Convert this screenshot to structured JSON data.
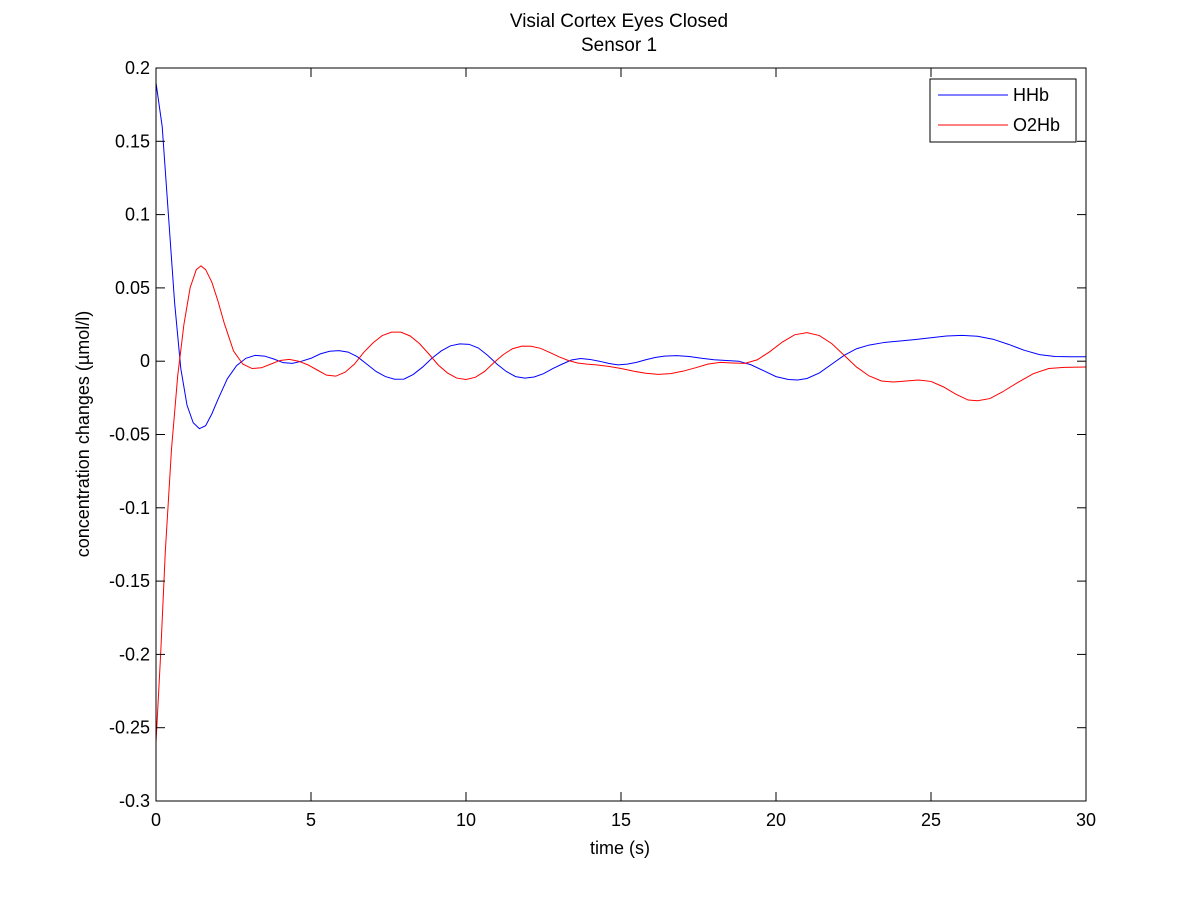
{
  "chart_data": {
    "type": "line",
    "title": "Visial Cortex Eyes Closed",
    "subtitle": "Sensor 1",
    "xlabel": "time (s)",
    "ylabel": "concentration changes (µmol/l)",
    "xlim": [
      0,
      30
    ],
    "ylim": [
      -0.3,
      0.2
    ],
    "x_ticks": [
      0,
      5,
      10,
      15,
      20,
      25,
      30
    ],
    "x_tick_labels": [
      "0",
      "5",
      "10",
      "15",
      "20",
      "25",
      "30"
    ],
    "y_ticks": [
      0.2,
      0.15,
      0.1,
      0.05,
      0,
      -0.05,
      -0.1,
      -0.15,
      -0.2,
      -0.25,
      -0.3
    ],
    "y_tick_labels": [
      "0.2",
      "0.15",
      "0.1",
      "0.05",
      "0",
      "-0.05",
      "-0.1",
      "-0.15",
      "-0.2",
      "-0.25",
      "-0.3"
    ],
    "grid": false,
    "legend_position": "top-right",
    "series": [
      {
        "name": "HHb",
        "color": "#0000ff",
        "points": [
          [
            0,
            0.19
          ],
          [
            0.2,
            0.16
          ],
          [
            0.4,
            0.1
          ],
          [
            0.6,
            0.04
          ],
          [
            0.8,
            -0.005
          ],
          [
            1.0,
            -0.03
          ],
          [
            1.2,
            -0.042
          ],
          [
            1.4,
            -0.046
          ],
          [
            1.6,
            -0.044
          ],
          [
            1.8,
            -0.036
          ],
          [
            2.0,
            -0.026
          ],
          [
            2.3,
            -0.012
          ],
          [
            2.6,
            -0.003
          ],
          [
            2.9,
            0.002
          ],
          [
            3.2,
            0.004
          ],
          [
            3.5,
            0.0035
          ],
          [
            3.8,
            0.0015
          ],
          [
            4.1,
            -0.001
          ],
          [
            4.4,
            -0.0015
          ],
          [
            4.7,
            0.0
          ],
          [
            5.0,
            0.002
          ],
          [
            5.3,
            0.005
          ],
          [
            5.6,
            0.0068
          ],
          [
            5.9,
            0.0072
          ],
          [
            6.2,
            0.0062
          ],
          [
            6.5,
            0.003
          ],
          [
            6.8,
            -0.002
          ],
          [
            7.1,
            -0.007
          ],
          [
            7.4,
            -0.0105
          ],
          [
            7.7,
            -0.0123
          ],
          [
            8.0,
            -0.0122
          ],
          [
            8.3,
            -0.009
          ],
          [
            8.6,
            -0.004
          ],
          [
            8.9,
            0.002
          ],
          [
            9.2,
            0.007
          ],
          [
            9.5,
            0.0105
          ],
          [
            9.8,
            0.0118
          ],
          [
            10.1,
            0.0115
          ],
          [
            10.4,
            0.009
          ],
          [
            10.7,
            0.004
          ],
          [
            11.0,
            -0.002
          ],
          [
            11.3,
            -0.007
          ],
          [
            11.6,
            -0.0105
          ],
          [
            11.9,
            -0.0115
          ],
          [
            12.2,
            -0.0108
          ],
          [
            12.5,
            -0.0085
          ],
          [
            12.8,
            -0.005
          ],
          [
            13.1,
            -0.002
          ],
          [
            13.4,
            0.0008
          ],
          [
            13.7,
            0.0018
          ],
          [
            14.0,
            0.0012
          ],
          [
            14.3,
            0.0
          ],
          [
            14.6,
            -0.0015
          ],
          [
            14.9,
            -0.0025
          ],
          [
            15.2,
            -0.002
          ],
          [
            15.5,
            -0.0008
          ],
          [
            15.8,
            0.001
          ],
          [
            16.1,
            0.0025
          ],
          [
            16.4,
            0.0035
          ],
          [
            16.8,
            0.0038
          ],
          [
            17.2,
            0.0032
          ],
          [
            17.6,
            0.002
          ],
          [
            18.0,
            0.001
          ],
          [
            18.4,
            0.0005
          ],
          [
            18.8,
            0.0
          ],
          [
            19.2,
            -0.0025
          ],
          [
            19.6,
            -0.0065
          ],
          [
            20.0,
            -0.0105
          ],
          [
            20.4,
            -0.0125
          ],
          [
            20.7,
            -0.0128
          ],
          [
            21.0,
            -0.0118
          ],
          [
            21.4,
            -0.008
          ],
          [
            21.8,
            -0.002
          ],
          [
            22.2,
            0.004
          ],
          [
            22.6,
            0.0085
          ],
          [
            23.0,
            0.011
          ],
          [
            23.5,
            0.0128
          ],
          [
            24.0,
            0.0138
          ],
          [
            24.5,
            0.0148
          ],
          [
            25.0,
            0.016
          ],
          [
            25.5,
            0.0172
          ],
          [
            26.0,
            0.0176
          ],
          [
            26.5,
            0.017
          ],
          [
            27.0,
            0.015
          ],
          [
            27.5,
            0.0115
          ],
          [
            28.0,
            0.0075
          ],
          [
            28.5,
            0.0045
          ],
          [
            29.0,
            0.0032
          ],
          [
            29.5,
            0.003
          ],
          [
            30.0,
            0.003
          ]
        ]
      },
      {
        "name": "O2Hb",
        "color": "#ff0000",
        "points": [
          [
            0,
            -0.26
          ],
          [
            0.15,
            -0.2
          ],
          [
            0.3,
            -0.13
          ],
          [
            0.5,
            -0.06
          ],
          [
            0.7,
            -0.01
          ],
          [
            0.9,
            0.025
          ],
          [
            1.1,
            0.05
          ],
          [
            1.3,
            0.0625
          ],
          [
            1.45,
            0.065
          ],
          [
            1.6,
            0.0625
          ],
          [
            1.8,
            0.054
          ],
          [
            2.0,
            0.041
          ],
          [
            2.2,
            0.026
          ],
          [
            2.5,
            0.007
          ],
          [
            2.8,
            -0.002
          ],
          [
            3.1,
            -0.005
          ],
          [
            3.4,
            -0.0045
          ],
          [
            3.7,
            -0.002
          ],
          [
            4.0,
            0.0005
          ],
          [
            4.3,
            0.0012
          ],
          [
            4.6,
            0.0
          ],
          [
            4.9,
            -0.0025
          ],
          [
            5.2,
            -0.006
          ],
          [
            5.5,
            -0.0095
          ],
          [
            5.8,
            -0.0102
          ],
          [
            6.1,
            -0.0075
          ],
          [
            6.4,
            -0.002
          ],
          [
            6.7,
            0.006
          ],
          [
            7.0,
            0.0125
          ],
          [
            7.3,
            0.0175
          ],
          [
            7.6,
            0.0198
          ],
          [
            7.9,
            0.0198
          ],
          [
            8.2,
            0.0172
          ],
          [
            8.5,
            0.012
          ],
          [
            8.8,
            0.005
          ],
          [
            9.1,
            -0.0025
          ],
          [
            9.4,
            -0.008
          ],
          [
            9.7,
            -0.0115
          ],
          [
            10.0,
            -0.0125
          ],
          [
            10.3,
            -0.011
          ],
          [
            10.6,
            -0.007
          ],
          [
            10.9,
            -0.001
          ],
          [
            11.2,
            0.0045
          ],
          [
            11.5,
            0.0085
          ],
          [
            11.8,
            0.0103
          ],
          [
            12.1,
            0.0102
          ],
          [
            12.4,
            0.0088
          ],
          [
            12.7,
            0.006
          ],
          [
            13.0,
            0.003
          ],
          [
            13.3,
            0.0005
          ],
          [
            13.6,
            -0.0012
          ],
          [
            13.9,
            -0.002
          ],
          [
            14.2,
            -0.0025
          ],
          [
            14.6,
            -0.0035
          ],
          [
            15.0,
            -0.005
          ],
          [
            15.4,
            -0.0068
          ],
          [
            15.8,
            -0.0082
          ],
          [
            16.2,
            -0.009
          ],
          [
            16.6,
            -0.0085
          ],
          [
            17.0,
            -0.0068
          ],
          [
            17.4,
            -0.0045
          ],
          [
            17.8,
            -0.002
          ],
          [
            18.2,
            -0.0008
          ],
          [
            18.6,
            -0.0012
          ],
          [
            19.0,
            -0.0015
          ],
          [
            19.4,
            0.001
          ],
          [
            19.8,
            0.0065
          ],
          [
            20.2,
            0.013
          ],
          [
            20.6,
            0.018
          ],
          [
            21.0,
            0.0195
          ],
          [
            21.4,
            0.0175
          ],
          [
            21.8,
            0.012
          ],
          [
            22.2,
            0.004
          ],
          [
            22.6,
            -0.004
          ],
          [
            23.0,
            -0.01
          ],
          [
            23.4,
            -0.0135
          ],
          [
            23.8,
            -0.0142
          ],
          [
            24.2,
            -0.0135
          ],
          [
            24.6,
            -0.0128
          ],
          [
            25.0,
            -0.0138
          ],
          [
            25.4,
            -0.0175
          ],
          [
            25.8,
            -0.0225
          ],
          [
            26.2,
            -0.0265
          ],
          [
            26.5,
            -0.027
          ],
          [
            26.9,
            -0.0255
          ],
          [
            27.3,
            -0.021
          ],
          [
            27.8,
            -0.0145
          ],
          [
            28.3,
            -0.0085
          ],
          [
            28.8,
            -0.005
          ],
          [
            29.3,
            -0.0042
          ],
          [
            30.0,
            -0.004
          ]
        ]
      }
    ]
  }
}
